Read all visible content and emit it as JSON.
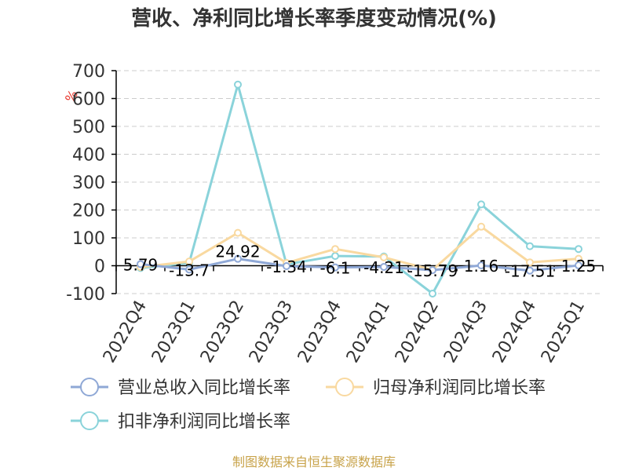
{
  "chart_data": {
    "type": "line",
    "title": "营收、净利同比增长率季度变动情况(%)",
    "ylabel": "%",
    "ylim": [
      -100,
      700
    ],
    "yticks": [
      -100,
      0,
      100,
      200,
      300,
      400,
      500,
      600,
      700
    ],
    "categories": [
      "2022Q4",
      "2023Q1",
      "2023Q2",
      "2023Q3",
      "2023Q4",
      "2024Q1",
      "2024Q2",
      "2024Q3",
      "2024Q4",
      "2025Q1"
    ],
    "series": [
      {
        "name": "营业总收入同比增长率",
        "color": "#8fa8d6",
        "values": [
          5.79,
          -13.7,
          24.92,
          -1.34,
          -6.1,
          -4.21,
          -15.79,
          1.16,
          -17.51,
          1.25
        ],
        "labels": [
          "5.79",
          "-13.7",
          "24.92",
          "-1.34",
          "-6.1",
          "-4.21",
          "-15.79",
          "1.16",
          "-17.51",
          "1.25"
        ]
      },
      {
        "name": "归母净利润同比增长率",
        "color": "#f9d9a0",
        "values": [
          -5,
          15,
          118,
          10,
          60,
          30,
          -15,
          140,
          12,
          25
        ]
      },
      {
        "name": "扣非净利润同比增长率",
        "color": "#8ad3da",
        "values": [
          -8,
          10,
          650,
          5,
          35,
          33,
          -100,
          220,
          70,
          60
        ]
      }
    ],
    "grid": true,
    "legend_position": "bottom"
  },
  "source": "制图数据来自恒生聚源数据库"
}
